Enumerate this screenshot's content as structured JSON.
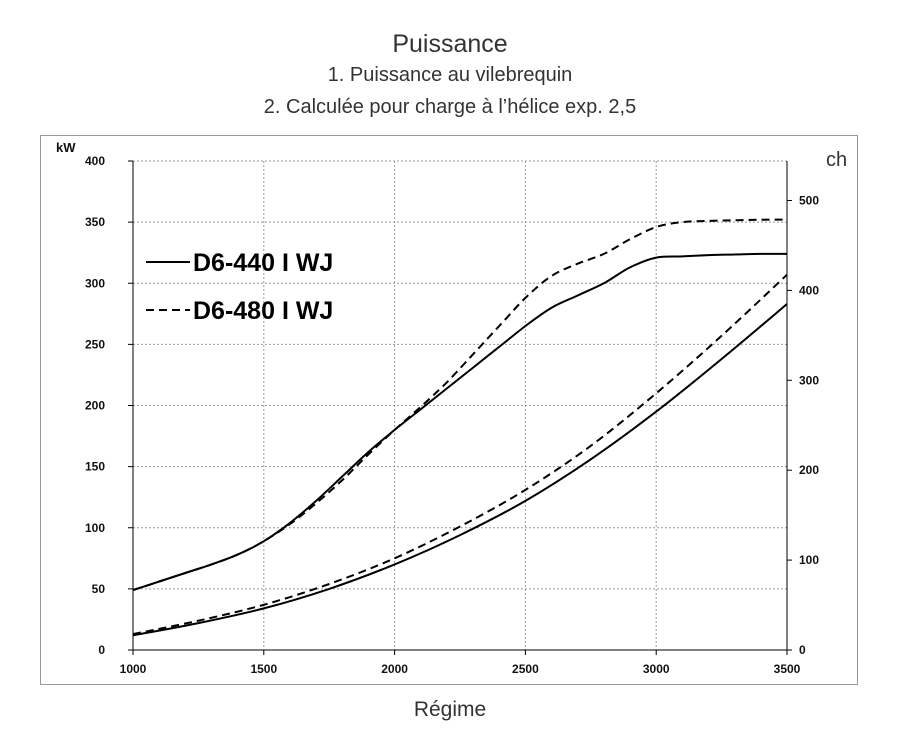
{
  "chart_data": {
    "type": "line",
    "title": "Puissance",
    "subtitle_1": "1. Puissance au vilebrequin",
    "subtitle_2": "2. Calculée pour charge à l’hélice exp. 2,5",
    "xlabel": "Régime",
    "ylabel_left": "kW",
    "ylabel_right": "ch",
    "xlim": [
      1000,
      3500
    ],
    "ylim_left": [
      0,
      400
    ],
    "ylim_right": [
      0,
      543.9
    ],
    "x_ticks": [
      "1000",
      "1500",
      "2000",
      "2500",
      "3000",
      "3500"
    ],
    "y_ticks_left": [
      "0",
      "50",
      "100",
      "150",
      "200",
      "250",
      "300",
      "350",
      "400"
    ],
    "y_ticks_right": [
      "0",
      "100",
      "200",
      "300",
      "400",
      "500"
    ],
    "grid": true,
    "legend": [
      {
        "label": "D6-440 I WJ",
        "style": "solid"
      },
      {
        "label": "D6-480 I WJ",
        "style": "dashed"
      }
    ],
    "series": [
      {
        "name": "D6-440 I WJ — Puissance au vilebrequin",
        "style": "solid",
        "x": [
          1000,
          1100,
          1200,
          1300,
          1400,
          1500,
          1600,
          1700,
          1800,
          1900,
          2000,
          2100,
          2200,
          2300,
          2400,
          2500,
          2600,
          2700,
          2800,
          2900,
          3000,
          3100,
          3200,
          3300,
          3400,
          3500
        ],
        "values": [
          49,
          56,
          63,
          70,
          78,
          89,
          104,
          122,
          142,
          162,
          180,
          197,
          214,
          231,
          248,
          265,
          280,
          290,
          300,
          313,
          321,
          322,
          323,
          323.5,
          324,
          324
        ]
      },
      {
        "name": "D6-480 I WJ — Puissance au vilebrequin",
        "style": "dashed",
        "x": [
          1000,
          1100,
          1200,
          1300,
          1400,
          1500,
          1600,
          1700,
          1800,
          1900,
          2000,
          2100,
          2200,
          2300,
          2400,
          2500,
          2600,
          2700,
          2800,
          2900,
          3000,
          3100,
          3200,
          3300,
          3400,
          3500
        ],
        "values": [
          49,
          56,
          63,
          70,
          78,
          89,
          103,
          120,
          139,
          160,
          180,
          199,
          219,
          242,
          265,
          288,
          306,
          316,
          324,
          336,
          346,
          350,
          351,
          351.5,
          352,
          352
        ]
      },
      {
        "name": "D6-440 I WJ — Charge à l’hélice",
        "style": "solid",
        "x": [
          1000,
          1250,
          1500,
          1750,
          2000,
          2250,
          2500,
          2750,
          3000,
          3250,
          3500
        ],
        "values": [
          12,
          22,
          34,
          50,
          70,
          94,
          122,
          156,
          195,
          238,
          283
        ]
      },
      {
        "name": "D6-480 I WJ — Charge à l’hélice",
        "style": "dashed",
        "x": [
          1000,
          1250,
          1500,
          1750,
          2000,
          2250,
          2500,
          2750,
          3000,
          3250,
          3500
        ],
        "values": [
          13,
          24,
          37,
          54,
          75,
          101,
          131,
          167,
          210,
          257,
          307
        ]
      }
    ]
  }
}
